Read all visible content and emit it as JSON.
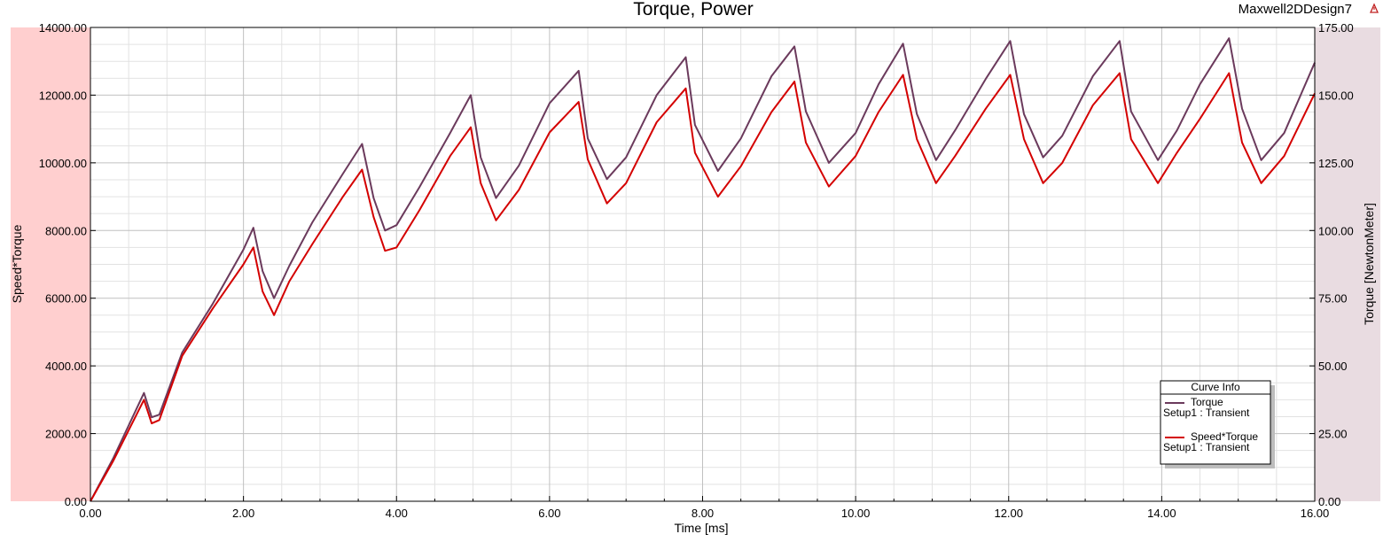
{
  "header": {
    "title": "Torque, Power",
    "design_name": "Maxwell2DDesign7"
  },
  "colors": {
    "torque": "#6b3a5c",
    "speed_torque": "#d40000",
    "left_band": "#ffcfcf",
    "right_band": "#e9dce1",
    "grid_major": "#c0c0c0",
    "grid_minor": "#e2e2e2"
  },
  "legend": {
    "title": "Curve Info",
    "entries": [
      {
        "name": "Torque",
        "setup": "Setup1 : Transient"
      },
      {
        "name": "Speed*Torque",
        "setup": "Setup1 : Transient"
      }
    ],
    "placement": "bottom-right"
  },
  "chart_data": {
    "type": "line",
    "title": "Torque, Power",
    "xlabel": "Time [ms]",
    "ylabel_left": "Speed*Torque",
    "ylabel_right": "Torque [NewtonMeter]",
    "xlim": [
      0,
      16
    ],
    "ylim_left": [
      0,
      14000
    ],
    "ylim_right": [
      0,
      175
    ],
    "x_ticks": [
      "0.00",
      "2.00",
      "4.00",
      "6.00",
      "8.00",
      "10.00",
      "12.00",
      "14.00",
      "16.00"
    ],
    "y_left_ticks": [
      "0.00",
      "2000.00",
      "4000.00",
      "6000.00",
      "8000.00",
      "10000.00",
      "12000.00",
      "14000.00"
    ],
    "y_right_ticks": [
      "0.00",
      "25.00",
      "50.00",
      "75.00",
      "100.00",
      "125.00",
      "150.00",
      "175.00"
    ],
    "grid": true,
    "series": [
      {
        "name": "Torque",
        "axis": "right",
        "x": [
          0,
          0.3,
          0.7,
          0.8,
          0.9,
          1.2,
          1.6,
          2.0,
          2.13,
          2.25,
          2.4,
          2.6,
          2.9,
          3.3,
          3.55,
          3.7,
          3.85,
          4.0,
          4.3,
          4.7,
          4.97,
          5.1,
          5.3,
          5.6,
          6.0,
          6.38,
          6.5,
          6.75,
          7.0,
          7.4,
          7.78,
          7.9,
          8.2,
          8.5,
          8.9,
          9.2,
          9.35,
          9.65,
          10.0,
          10.3,
          10.62,
          10.8,
          11.05,
          11.3,
          11.7,
          12.02,
          12.2,
          12.45,
          12.7,
          13.1,
          13.45,
          13.6,
          13.95,
          14.2,
          14.5,
          14.88,
          15.05,
          15.3,
          15.6,
          16.0
        ],
        "y": [
          0,
          16,
          40,
          31,
          32,
          55,
          73,
          93,
          101,
          85,
          75,
          87,
          103,
          121,
          132,
          112,
          100,
          102,
          116,
          136,
          150,
          127,
          112,
          124,
          147,
          159,
          134,
          119,
          127,
          150,
          164,
          139,
          122,
          134,
          157,
          168,
          144,
          125,
          136,
          154,
          169,
          143,
          126,
          137,
          156,
          170,
          143,
          127,
          135,
          157,
          170,
          144,
          126,
          137,
          154,
          171,
          145,
          126,
          136,
          162
        ]
      },
      {
        "name": "Speed*Torque",
        "axis": "left",
        "x": [
          0,
          0.3,
          0.7,
          0.8,
          0.9,
          1.2,
          1.6,
          2.0,
          2.13,
          2.25,
          2.4,
          2.6,
          2.9,
          3.3,
          3.55,
          3.7,
          3.85,
          4.0,
          4.3,
          4.7,
          4.97,
          5.1,
          5.3,
          5.6,
          6.0,
          6.38,
          6.5,
          6.75,
          7.0,
          7.4,
          7.78,
          7.9,
          8.2,
          8.5,
          8.9,
          9.2,
          9.35,
          9.65,
          10.0,
          10.3,
          10.62,
          10.8,
          11.05,
          11.3,
          11.7,
          12.02,
          12.2,
          12.45,
          12.7,
          13.1,
          13.45,
          13.6,
          13.95,
          14.2,
          14.5,
          14.88,
          15.05,
          15.3,
          15.6,
          16.0
        ],
        "y": [
          0,
          1200,
          3000,
          2300,
          2400,
          4300,
          5700,
          7000,
          7500,
          6200,
          5500,
          6500,
          7600,
          9000,
          9800,
          8400,
          7400,
          7500,
          8600,
          10200,
          11050,
          9400,
          8300,
          9200,
          10900,
          11800,
          10100,
          8800,
          9400,
          11200,
          12200,
          10300,
          9000,
          9900,
          11500,
          12400,
          10600,
          9300,
          10200,
          11500,
          12600,
          10700,
          9400,
          10200,
          11600,
          12600,
          10700,
          9400,
          10000,
          11700,
          12650,
          10700,
          9400,
          10300,
          11300,
          12650,
          10600,
          9400,
          10200,
          12050
        ]
      }
    ]
  }
}
